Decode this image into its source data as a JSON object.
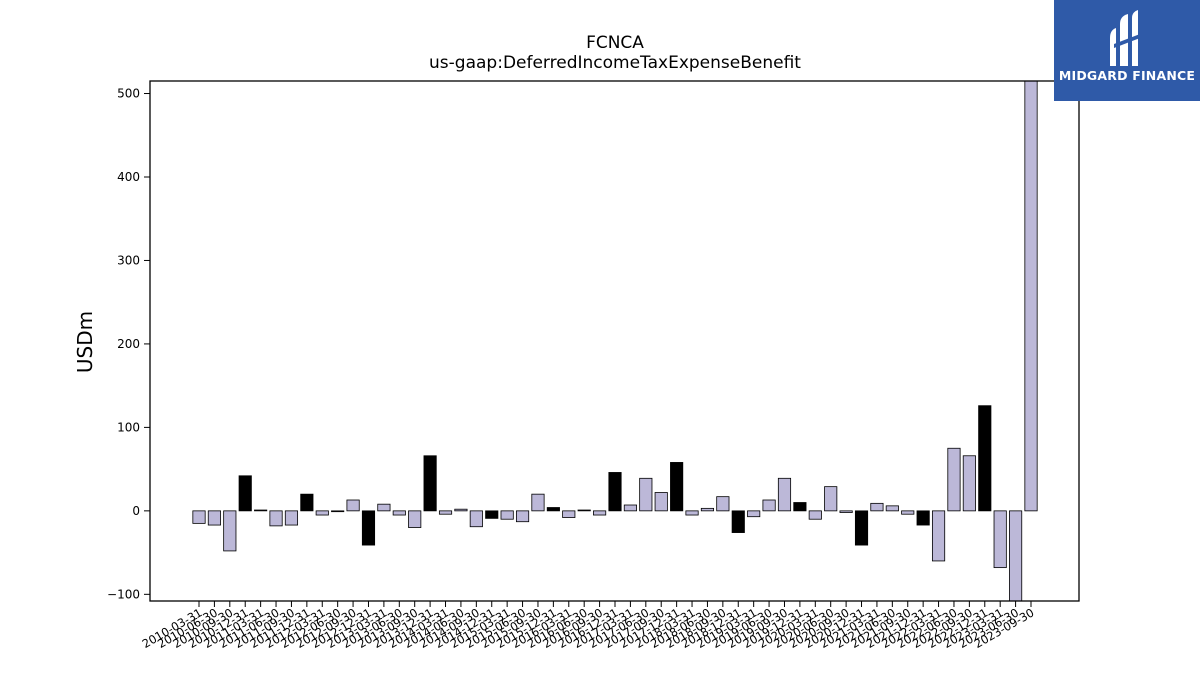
{
  "chart_data": {
    "type": "bar",
    "title": "FCNCA",
    "subtitle": "us-gaap:DeferredIncomeTaxExpenseBenefit",
    "ylabel": "USDm",
    "xlabel": "",
    "ylim": [
      -108,
      515
    ],
    "yticks": [
      -100,
      0,
      100,
      200,
      300,
      400,
      500
    ],
    "grid": false,
    "colors": {
      "quarter": "#bcb8d8",
      "annual": "#000000",
      "edge": "#000000"
    },
    "categories": [
      "2010-03-31",
      "2010-06-30",
      "2010-09-30",
      "2010-12-31",
      "2011-03-31",
      "2011-06-30",
      "2011-09-30",
      "2011-12-31",
      "2012-03-31",
      "2012-06-30",
      "2012-09-30",
      "2012-12-31",
      "2013-03-31",
      "2013-06-30",
      "2013-09-30",
      "2013-12-31",
      "2014-03-31",
      "2014-06-30",
      "2014-09-30",
      "2014-12-31",
      "2015-03-31",
      "2015-06-30",
      "2015-09-30",
      "2015-12-31",
      "2016-03-31",
      "2016-06-30",
      "2016-09-30",
      "2016-12-31",
      "2017-03-31",
      "2017-06-30",
      "2017-09-30",
      "2017-12-31",
      "2018-03-31",
      "2018-06-30",
      "2018-09-30",
      "2018-12-31",
      "2019-03-31",
      "2019-06-30",
      "2019-09-30",
      "2019-12-31",
      "2020-03-31",
      "2020-06-30",
      "2020-09-30",
      "2020-12-31",
      "2021-03-31",
      "2021-06-30",
      "2021-09-30",
      "2021-12-31",
      "2022-03-31",
      "2022-06-30",
      "2022-09-30",
      "2022-12-31",
      "2023-03-31",
      "2023-06-30",
      "2023-09-30"
    ],
    "values": [
      -15,
      -17,
      -48,
      42,
      1,
      -18,
      -17,
      20,
      -5,
      -1,
      13,
      -41,
      8,
      -5,
      -20,
      66,
      -4,
      2,
      -19,
      -9,
      -10,
      -13,
      20,
      4,
      -8,
      1,
      -5,
      46,
      7,
      39,
      22,
      58,
      -5,
      3,
      17,
      -26,
      -7,
      13,
      39,
      10,
      -10,
      29,
      -2,
      -41,
      9,
      6,
      -4,
      -17,
      -60,
      75,
      66,
      126,
      -68,
      -108,
      515
    ],
    "annual": [
      false,
      false,
      false,
      true,
      false,
      false,
      false,
      true,
      false,
      false,
      false,
      true,
      false,
      false,
      false,
      true,
      false,
      false,
      false,
      true,
      false,
      false,
      false,
      true,
      false,
      false,
      false,
      true,
      false,
      false,
      false,
      true,
      false,
      false,
      false,
      true,
      false,
      false,
      false,
      true,
      false,
      false,
      false,
      true,
      false,
      false,
      false,
      true,
      false,
      false,
      false,
      true,
      false,
      false,
      false
    ]
  },
  "logo": {
    "text": "MIDGARD FINANCE",
    "icon": "midgard-logo-icon"
  }
}
